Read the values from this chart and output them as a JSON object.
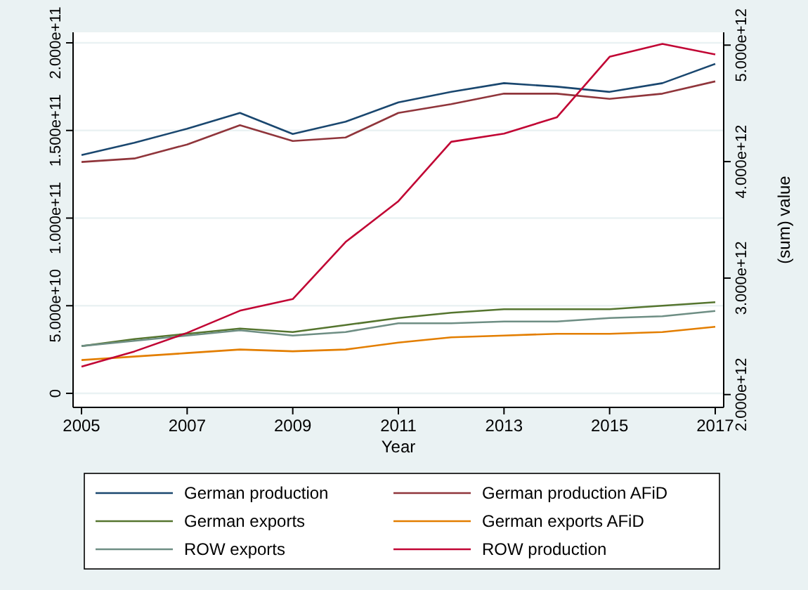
{
  "chart_data": {
    "type": "line",
    "xlabel": "Year",
    "y2label": "(sum) value",
    "x": [
      2005,
      2006,
      2007,
      2008,
      2009,
      2010,
      2011,
      2012,
      2013,
      2014,
      2015,
      2016,
      2017
    ],
    "xlim": [
      2004.84,
      2017.16
    ],
    "xticks": [
      2005,
      2007,
      2009,
      2011,
      2013,
      2015,
      2017
    ],
    "ylim": [
      -8000000000.0,
      206000000000.0
    ],
    "yticks": [
      0,
      {
        "value": 50000000000.0,
        "label": "5.000e+10"
      },
      {
        "value": 100000000000.0,
        "label": "1.000e+11"
      },
      {
        "value": 150000000000.0,
        "label": "1.500e+11"
      },
      {
        "value": 200000000000.0,
        "label": "2.000e+11"
      }
    ],
    "y2lim": [
      1890000000000.0,
      5110000000000.0
    ],
    "y2ticks": [
      {
        "value": 2000000000000.0,
        "label": "2.000e+12"
      },
      {
        "value": 3000000000000.0,
        "label": "3.000e+12"
      },
      {
        "value": 4000000000000.0,
        "label": "4.000e+12"
      },
      {
        "value": 5000000000000.0,
        "label": "5.000e+12"
      }
    ],
    "grid": "y",
    "legend": "bottom",
    "line_style": "solid",
    "marker": "none",
    "series": [
      {
        "name": "German production",
        "color": "#1a476f",
        "values": [
          136000000000.0,
          143000000000.0,
          151000000000.0,
          160000000000.0,
          148000000000.0,
          155000000000.0,
          166000000000.0,
          172000000000.0,
          177000000000.0,
          175000000000.0,
          172000000000.0,
          177000000000.0,
          188000000000.0
        ]
      },
      {
        "name": "German production AFiD",
        "color": "#90353b",
        "values": [
          132000000000.0,
          134000000000.0,
          142000000000.0,
          153000000000.0,
          144000000000.0,
          146000000000.0,
          160000000000.0,
          165000000000.0,
          171000000000.0,
          171000000000.0,
          168000000000.0,
          171000000000.0,
          178000000000.0
        ]
      },
      {
        "name": "German exports",
        "color": "#55752f",
        "values": [
          27000000000.0,
          31000000000.0,
          34000000000.0,
          37000000000.0,
          35000000000.0,
          39000000000.0,
          43000000000.0,
          46000000000.0,
          48000000000.0,
          48000000000.0,
          48000000000.0,
          50000000000.0,
          52000000000.0
        ]
      },
      {
        "name": "German exports AFiD",
        "color": "#e37e00",
        "values": [
          19000000000.0,
          21000000000.0,
          23000000000.0,
          25000000000.0,
          24000000000.0,
          25000000000.0,
          29000000000.0,
          32000000000.0,
          33000000000.0,
          34000000000.0,
          34000000000.0,
          35000000000.0,
          38000000000.0
        ]
      },
      {
        "name": "ROW exports",
        "color": "#6e8e84",
        "values": [
          27000000000.0,
          30000000000.0,
          33000000000.0,
          36000000000.0,
          33000000000.0,
          35000000000.0,
          40000000000.0,
          40000000000.0,
          41000000000.0,
          41000000000.0,
          43000000000.0,
          44000000000.0,
          47000000000.0
        ]
      },
      {
        "name": "ROW production",
        "color": "#c10534",
        "axis": "y2",
        "values": [
          2240000000000.0,
          2370000000000.0,
          2530000000000.0,
          2720000000000.0,
          2820000000000.0,
          3310000000000.0,
          3660000000000.0,
          4170000000000.0,
          4240000000000.0,
          4380000000000.0,
          4900000000000.0,
          5010000000000.0,
          4920000000000.0
        ]
      }
    ]
  }
}
